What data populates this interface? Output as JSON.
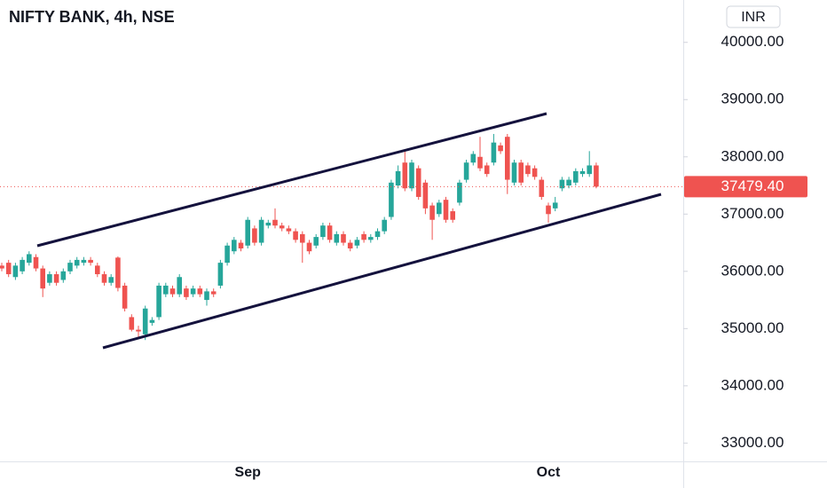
{
  "chart_data": {
    "type": "candlestick",
    "title": "NIFTY BANK, 4h, NSE",
    "currency": "INR",
    "categories": [
      null,
      null,
      null,
      null,
      null,
      null,
      null,
      null,
      null,
      null,
      null,
      null,
      null,
      null,
      null,
      null,
      null,
      null,
      null,
      null,
      null,
      null,
      null,
      null,
      null,
      null,
      null,
      null,
      null,
      null,
      null,
      null,
      null,
      null,
      null,
      null,
      "Sep",
      null,
      null,
      null,
      null,
      null,
      null,
      null,
      null,
      null,
      null,
      null,
      null,
      null,
      null,
      null,
      null,
      null,
      null,
      null,
      null,
      null,
      null,
      null,
      null,
      null,
      null,
      null,
      null,
      null,
      null,
      null,
      null,
      null,
      null,
      null,
      null,
      null,
      null,
      null,
      null,
      null,
      null,
      null,
      "Oct",
      null,
      null,
      null,
      null,
      null,
      null,
      null
    ],
    "open": [
      36100,
      36150,
      35900,
      36000,
      36150,
      36250,
      36050,
      35800,
      35950,
      35850,
      36000,
      36100,
      36150,
      36200,
      36100,
      35950,
      35800,
      36240,
      35750,
      35200,
      34980,
      34900,
      35100,
      35200,
      35600,
      35700,
      35600,
      35700,
      35600,
      35700,
      35500,
      35650,
      35750,
      36150,
      36350,
      36500,
      36450,
      36750,
      36500,
      36800,
      36900,
      36800,
      36750,
      36700,
      36650,
      36500,
      36450,
      36600,
      36800,
      36500,
      36650,
      36500,
      36450,
      36650,
      36550,
      36600,
      36700,
      36950,
      37500,
      37900,
      37450,
      37800,
      37550,
      37150,
      37000,
      37250,
      37050,
      37200,
      37600,
      37900,
      38000,
      37850,
      37900,
      38200,
      38350,
      37550,
      37900,
      37850,
      37800,
      37600,
      37150,
      37100,
      37450,
      37500,
      37550,
      37700,
      37700,
      37850
    ],
    "high": [
      36150,
      36200,
      36150,
      36250,
      36350,
      36300,
      36100,
      36000,
      36000,
      36050,
      36200,
      36250,
      36250,
      36250,
      36150,
      36000,
      35950,
      36260,
      35800,
      35250,
      35050,
      35400,
      35200,
      35800,
      35800,
      35750,
      35950,
      35750,
      35750,
      35750,
      35700,
      35700,
      36200,
      36500,
      36600,
      36550,
      36950,
      36800,
      36950,
      36900,
      37100,
      36850,
      36800,
      36750,
      36700,
      36550,
      36650,
      36850,
      36850,
      36700,
      36700,
      36550,
      36600,
      36700,
      36650,
      36750,
      36950,
      37600,
      37850,
      38100,
      37950,
      37850,
      37600,
      37200,
      37250,
      37300,
      37100,
      37600,
      37950,
      38100,
      38350,
      37900,
      38400,
      38250,
      38400,
      37950,
      37950,
      37900,
      37850,
      37650,
      37200,
      37300,
      37650,
      37650,
      37800,
      37800,
      38100,
      37900
    ],
    "low": [
      36000,
      35900,
      35850,
      35950,
      36100,
      36000,
      35550,
      35750,
      35750,
      35800,
      35950,
      36050,
      36100,
      36100,
      35900,
      35750,
      35750,
      35650,
      35300,
      34950,
      34850,
      34800,
      35050,
      35150,
      35550,
      35550,
      35550,
      35500,
      35550,
      35550,
      35400,
      35550,
      35700,
      36100,
      36300,
      36350,
      36400,
      36450,
      36450,
      36750,
      36750,
      36700,
      36650,
      36500,
      36150,
      36300,
      36400,
      36550,
      36500,
      36450,
      36450,
      36350,
      36400,
      36500,
      36500,
      36550,
      36650,
      36900,
      37450,
      37400,
      37400,
      37250,
      37000,
      36550,
      36950,
      36850,
      36850,
      37150,
      37550,
      37850,
      37750,
      37650,
      37850,
      38050,
      37350,
      37500,
      37500,
      37650,
      37600,
      37250,
      36850,
      37050,
      37400,
      37450,
      37500,
      37650,
      37650,
      37450
    ],
    "close": [
      36050,
      35950,
      36100,
      36200,
      36300,
      36050,
      35700,
      35950,
      35800,
      36000,
      36150,
      36200,
      36200,
      36150,
      35950,
      35800,
      35900,
      35710,
      35350,
      34980,
      34950,
      35350,
      35150,
      35750,
      35750,
      35600,
      35900,
      35550,
      35700,
      35600,
      35650,
      35600,
      36150,
      36450,
      36550,
      36400,
      36900,
      36500,
      36900,
      36850,
      36800,
      36750,
      36700,
      36550,
      36500,
      36350,
      36600,
      36800,
      36550,
      36650,
      36500,
      36400,
      36550,
      36550,
      36600,
      36700,
      36900,
      37550,
      37750,
      37450,
      37900,
      37300,
      37100,
      36900,
      37200,
      36900,
      36900,
      37550,
      37900,
      38050,
      37800,
      37700,
      38250,
      38100,
      37600,
      37900,
      37550,
      37700,
      37650,
      37300,
      37000,
      37200,
      37600,
      37600,
      37750,
      37750,
      37850,
      37479.4
    ],
    "up_color": "#26a69a",
    "down_color": "#ef5350",
    "last_price": {
      "value": 37479.4,
      "label": "37479.40"
    },
    "ylim": [
      32680,
      40740
    ],
    "yticks": [
      {
        "value": 33000,
        "label": "33000.00"
      },
      {
        "value": 34000,
        "label": "34000.00"
      },
      {
        "value": 35000,
        "label": "35000.00"
      },
      {
        "value": 36000,
        "label": "36000.00"
      },
      {
        "value": 37000,
        "label": "37000.00"
      },
      {
        "value": 38000,
        "label": "38000.00"
      },
      {
        "value": 39000,
        "label": "39000.00"
      },
      {
        "value": 40000,
        "label": "40000.00"
      }
    ],
    "grid": false
  }
}
